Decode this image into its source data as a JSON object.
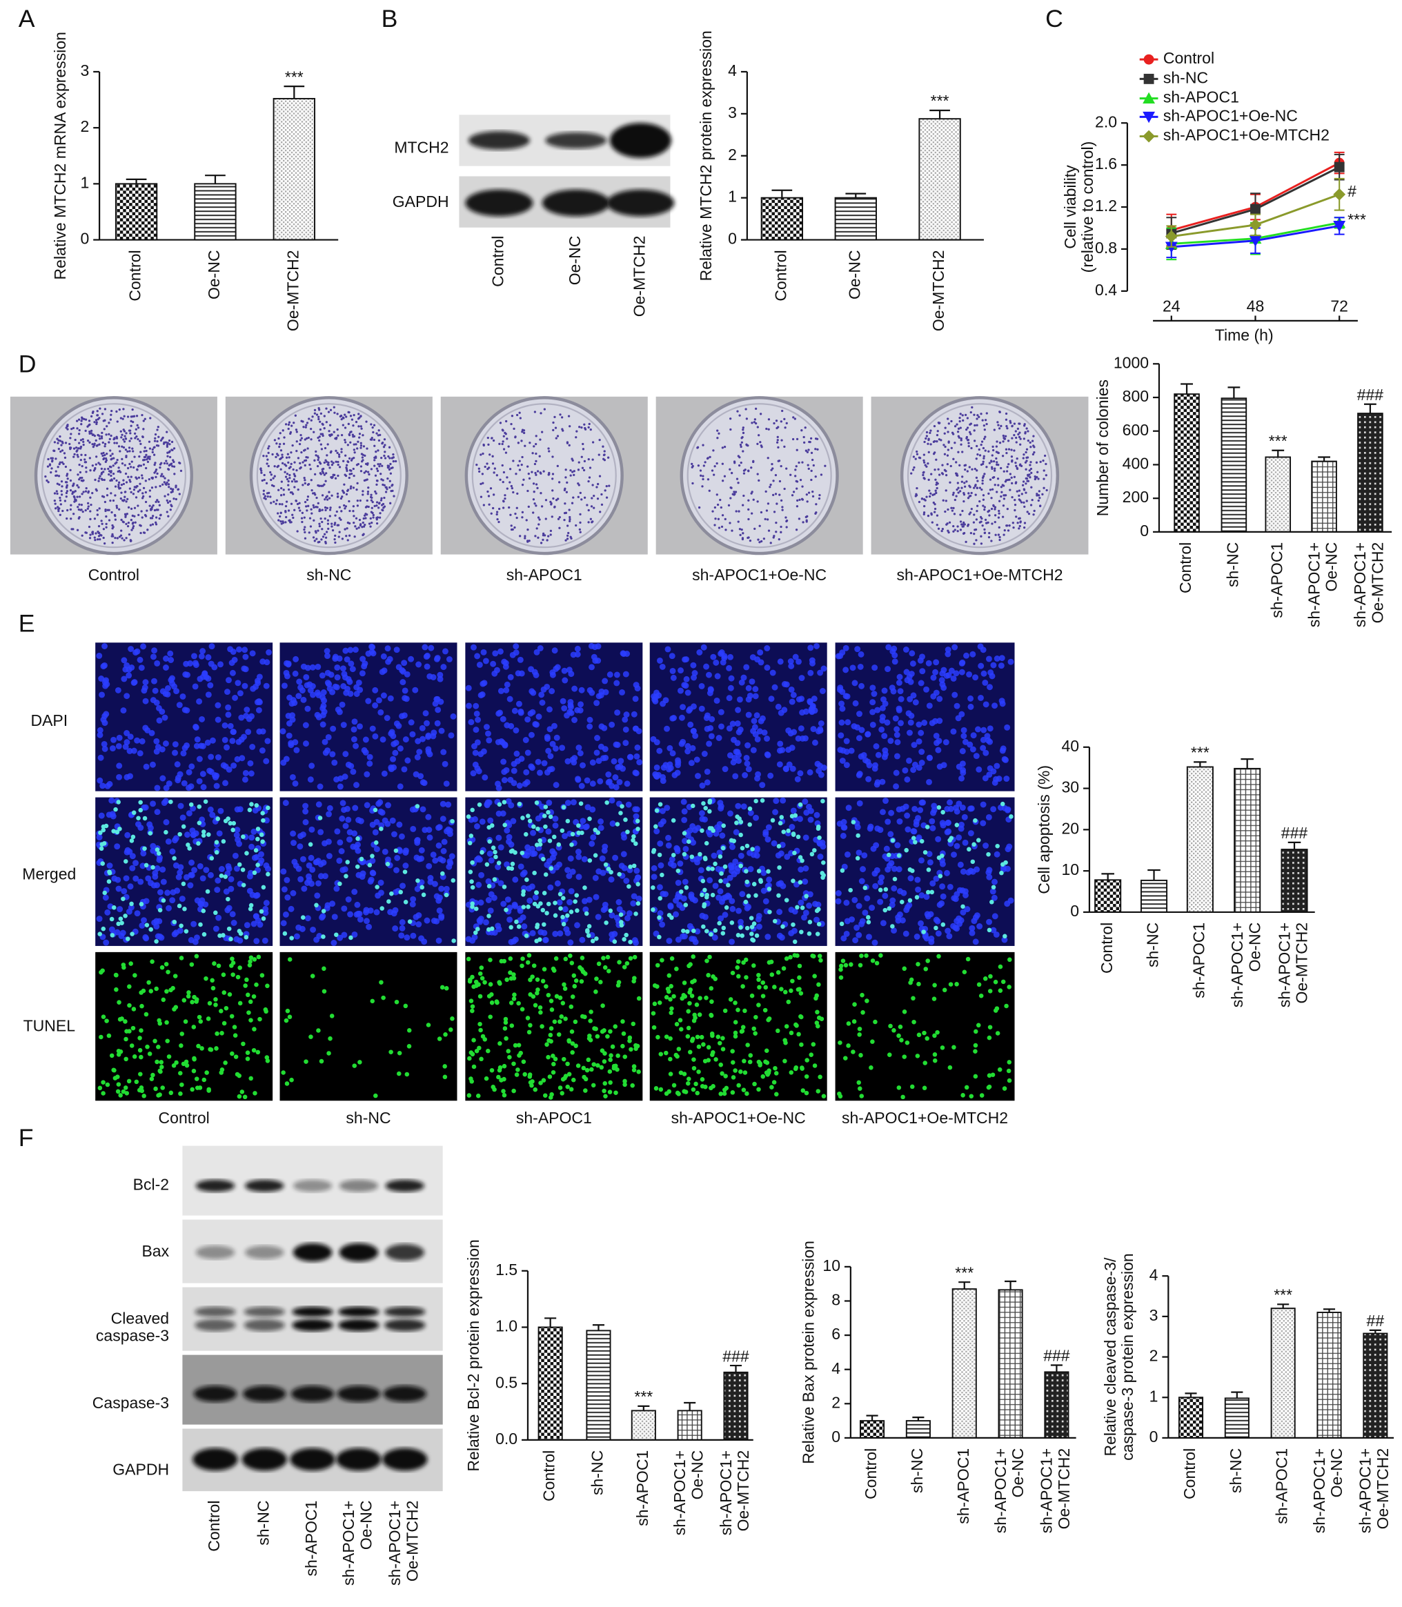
{
  "panel_labels": [
    "A",
    "B",
    "C",
    "D",
    "E",
    "F"
  ],
  "blot_B": {
    "rows": [
      "MTCH2",
      "GAPDH"
    ],
    "lanes": [
      "Control",
      "Oe-NC",
      "Oe-MTCH2"
    ]
  },
  "colony_images": {
    "captions": [
      "Control",
      "sh-NC",
      "sh-APOC1",
      "sh-APOC1+Oe-NC",
      "sh-APOC1+Oe-MTCH2"
    ]
  },
  "tunel_images": {
    "rows": [
      "DAPI",
      "Merged",
      "TUNEL"
    ],
    "captions": [
      "Control",
      "sh-NC",
      "sh-APOC1",
      "sh-APOC1+Oe-NC",
      "sh-APOC1+Oe-MTCH2"
    ]
  },
  "blot_F": {
    "rows": [
      "Bcl-2",
      "Bax",
      "Cleaved\ncaspase-3",
      "Caspase-3",
      "GAPDH"
    ],
    "lanes": [
      "Control",
      "sh-NC",
      "sh-APOC1",
      "sh-APOC1+\nOe-NC",
      "sh-APOC1+\nOe-MTCH2"
    ]
  },
  "chart_data": [
    {
      "type": "bar",
      "ylabel": "Relative MTCH2 mRNA expression",
      "categories": [
        "Control",
        "Oe-NC",
        "Oe-MTCH2"
      ],
      "values": [
        1.0,
        1.0,
        2.52
      ],
      "errors": [
        0.08,
        0.15,
        0.22
      ],
      "significance": [
        null,
        null,
        "***"
      ],
      "patterns": [
        "checker",
        "hlines",
        "dots"
      ],
      "ylim": [
        0,
        3
      ],
      "yticks": [
        0,
        1,
        2,
        3
      ]
    },
    {
      "type": "bar",
      "ylabel": "Relative MTCH2 protein expression",
      "categories": [
        "Control",
        "Oe-NC",
        "Oe-MTCH2"
      ],
      "values": [
        1.0,
        1.0,
        2.88
      ],
      "errors": [
        0.18,
        0.1,
        0.2
      ],
      "significance": [
        null,
        null,
        "***"
      ],
      "patterns": [
        "checker",
        "hlines",
        "dots"
      ],
      "ylim": [
        0,
        4
      ],
      "yticks": [
        0,
        1,
        2,
        3,
        4
      ]
    },
    {
      "type": "line",
      "xlabel": "Time (h)",
      "ylabel": "Cell viability\n(relative to control)",
      "x": [
        24,
        48,
        72
      ],
      "xlim": [
        11.4,
        81.7
      ],
      "xticks": [
        24,
        48,
        72
      ],
      "ylim": [
        0.4,
        2.0
      ],
      "yticks": [
        0.4,
        0.8,
        1.2,
        1.6,
        {
          "value": 2.0,
          "label": "2.0"
        }
      ],
      "series": [
        {
          "name": "Control",
          "color": "#e8201f",
          "marker": "circle",
          "values": [
            0.98,
            1.2,
            1.62
          ],
          "errors": [
            0.15,
            0.12,
            0.1
          ]
        },
        {
          "name": "sh-NC",
          "color": "#333333",
          "marker": "square",
          "values": [
            0.95,
            1.18,
            1.58
          ],
          "errors": [
            0.15,
            0.15,
            0.12
          ]
        },
        {
          "name": "sh-APOC1",
          "color": "#22dd22",
          "marker": "triangle-up",
          "values": [
            0.85,
            0.9,
            1.05
          ],
          "errors": [
            0.15,
            0.15,
            0.05
          ],
          "end_label": "***"
        },
        {
          "name": "sh-APOC1+Oe-NC",
          "color": "#1a1aff",
          "marker": "triangle-down",
          "values": [
            0.82,
            0.88,
            1.02
          ],
          "errors": [
            0.1,
            0.12,
            0.08
          ]
        },
        {
          "name": "sh-APOC1+Oe-MTCH2",
          "color": "#8a9a2b",
          "marker": "diamond",
          "values": [
            0.92,
            1.03,
            1.32
          ],
          "errors": [
            0.1,
            0.1,
            0.15
          ],
          "end_label": "#"
        }
      ]
    },
    {
      "type": "bar",
      "ylabel": "Number of colonies",
      "categories": [
        "Control",
        "sh-NC",
        "sh-APOC1",
        "sh-APOC1+\nOe-NC",
        "sh-APOC1+\nOe-MTCH2"
      ],
      "values": [
        820,
        795,
        445,
        420,
        705
      ],
      "errors": [
        60,
        65,
        40,
        25,
        55
      ],
      "significance": [
        null,
        null,
        "***",
        null,
        "###"
      ],
      "patterns": [
        "checker",
        "hlines",
        "dots",
        "grid",
        "dark"
      ],
      "ylim": [
        0,
        1000
      ],
      "yticks": [
        0,
        200,
        400,
        600,
        800,
        1000
      ]
    },
    {
      "type": "bar",
      "ylabel": "Cell apoptosis (%)",
      "categories": [
        "Control",
        "sh-NC",
        "sh-APOC1",
        "sh-APOC1+\nOe-NC",
        "sh-APOC1+\nOe-MTCH2"
      ],
      "values": [
        7.8,
        7.7,
        35.2,
        34.8,
        15.2
      ],
      "errors": [
        1.5,
        2.5,
        1.2,
        2.3,
        1.7
      ],
      "significance": [
        null,
        null,
        "***",
        null,
        "###"
      ],
      "patterns": [
        "checker",
        "hlines",
        "dots",
        "grid",
        "dark"
      ],
      "ylim": [
        0,
        40
      ],
      "yticks": [
        0,
        10,
        20,
        30,
        40
      ]
    },
    {
      "type": "bar",
      "ylabel": "Relative Bcl-2 protein expression",
      "categories": [
        "Control",
        "sh-NC",
        "sh-APOC1",
        "sh-APOC1+\nOe-NC",
        "sh-APOC1+\nOe-MTCH2"
      ],
      "values": [
        1.0,
        0.97,
        0.26,
        0.26,
        0.6
      ],
      "errors": [
        0.08,
        0.05,
        0.04,
        0.07,
        0.06
      ],
      "significance": [
        null,
        null,
        "***",
        null,
        "###"
      ],
      "patterns": [
        "checker",
        "hlines",
        "dots",
        "grid",
        "dark"
      ],
      "ylim": [
        0,
        1.5
      ],
      "yticks": [
        {
          "value": 0,
          "label": "0.0"
        },
        0.5,
        {
          "value": 1.0,
          "label": "1.0"
        },
        1.5
      ]
    },
    {
      "type": "bar",
      "ylabel": "Relative Bax protein expression",
      "categories": [
        "Control",
        "sh-NC",
        "sh-APOC1",
        "sh-APOC1+\nOe-NC",
        "sh-APOC1+\nOe-MTCH2"
      ],
      "values": [
        1.0,
        1.0,
        8.7,
        8.65,
        3.85
      ],
      "errors": [
        0.3,
        0.2,
        0.4,
        0.5,
        0.4
      ],
      "significance": [
        null,
        null,
        "***",
        null,
        "###"
      ],
      "patterns": [
        "checker",
        "hlines",
        "dots",
        "grid",
        "dark"
      ],
      "ylim": [
        0,
        10
      ],
      "yticks": [
        0,
        2,
        4,
        6,
        8,
        10
      ]
    },
    {
      "type": "bar",
      "ylabel": "Relative cleaved caspase-3/\ncaspase-3 protein expression",
      "categories": [
        "Control",
        "sh-NC",
        "sh-APOC1",
        "sh-APOC1+\nOe-NC",
        "sh-APOC1+\nOe-MTCH2"
      ],
      "values": [
        1.0,
        0.98,
        3.2,
        3.1,
        2.58
      ],
      "errors": [
        0.1,
        0.15,
        0.1,
        0.08,
        0.08
      ],
      "significance": [
        null,
        null,
        "***",
        null,
        "##"
      ],
      "patterns": [
        "checker",
        "hlines",
        "dots",
        "grid",
        "dark"
      ],
      "ylim": [
        0,
        4
      ],
      "yticks": [
        0,
        1,
        2,
        3,
        4
      ]
    }
  ]
}
